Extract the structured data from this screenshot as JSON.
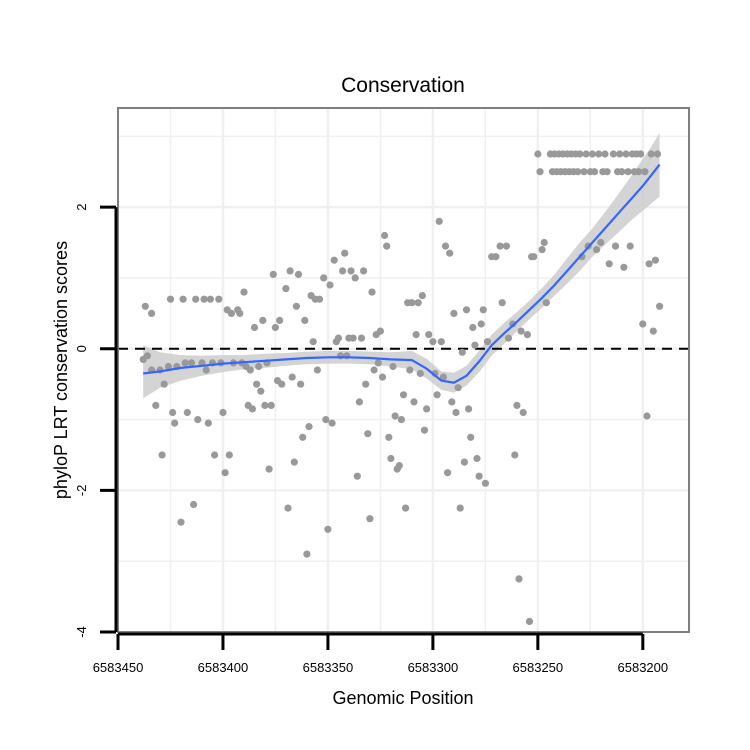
{
  "chart_data": {
    "type": "scatter",
    "title": "Conservation",
    "xlabel": "Genomic Position",
    "ylabel": "phyloP LRT conservation scores",
    "xlim": [
      6583450,
      6583178
    ],
    "x_reversed": true,
    "ylim": [
      -4.0,
      3.4
    ],
    "x_ticks": [
      6583450,
      6583400,
      6583350,
      6583300,
      6583250,
      6583200
    ],
    "x_tick_labels": [
      "6583450",
      "6583400",
      "6583350",
      "6583300",
      "6583250",
      "6583200"
    ],
    "y_ticks": [
      -4,
      -2,
      0,
      2
    ],
    "y_tick_labels": [
      "-4",
      "-2",
      "0",
      "2"
    ],
    "grid": true,
    "reference_line": {
      "y": 0,
      "style": "dashed",
      "color": "#000000"
    },
    "colors": {
      "points": "#999999",
      "smooth": "#3366ff",
      "band": "#cccccc",
      "panel_border": "#7f7f7f",
      "grid": "#f0f0f0"
    },
    "points": [
      [
        6583438,
        -0.15
      ],
      [
        6583437,
        0.6
      ],
      [
        6583436,
        -0.1
      ],
      [
        6583434,
        0.5
      ],
      [
        6583434,
        -0.3
      ],
      [
        6583432,
        -0.8
      ],
      [
        6583430,
        -0.3
      ],
      [
        6583429,
        -1.5
      ],
      [
        6583428,
        -0.5
      ],
      [
        6583426,
        -0.25
      ],
      [
        6583425,
        0.7
      ],
      [
        6583424,
        -0.9
      ],
      [
        6583423,
        -1.05
      ],
      [
        6583422,
        -0.25
      ],
      [
        6583420,
        -2.45
      ],
      [
        6583419,
        0.7
      ],
      [
        6583418,
        -0.2
      ],
      [
        6583417,
        -0.9
      ],
      [
        6583415,
        -0.2
      ],
      [
        6583414,
        -2.2
      ],
      [
        6583413,
        0.7
      ],
      [
        6583412,
        -1.0
      ],
      [
        6583410,
        -0.2
      ],
      [
        6583409,
        0.7
      ],
      [
        6583408,
        -0.3
      ],
      [
        6583407,
        -1.05
      ],
      [
        6583406,
        0.7
      ],
      [
        6583405,
        -0.2
      ],
      [
        6583404,
        -1.5
      ],
      [
        6583402,
        0.7
      ],
      [
        6583401,
        -0.2
      ],
      [
        6583400,
        -0.9
      ],
      [
        6583399,
        -1.75
      ],
      [
        6583398,
        0.55
      ],
      [
        6583397,
        -1.5
      ],
      [
        6583396,
        0.5
      ],
      [
        6583395,
        -0.2
      ],
      [
        6583393,
        0.55
      ],
      [
        6583392,
        0.5
      ],
      [
        6583391,
        -0.2
      ],
      [
        6583390,
        0.8
      ],
      [
        6583389,
        -0.25
      ],
      [
        6583388,
        -0.8
      ],
      [
        6583387,
        -0.3
      ],
      [
        6583386,
        -0.85
      ],
      [
        6583385,
        0.3
      ],
      [
        6583384,
        -0.5
      ],
      [
        6583383,
        -0.25
      ],
      [
        6583382,
        -0.6
      ],
      [
        6583381,
        0.4
      ],
      [
        6583380,
        -0.8
      ],
      [
        6583379,
        -0.2
      ],
      [
        6583378,
        -1.7
      ],
      [
        6583377,
        -0.8
      ],
      [
        6583376,
        1.05
      ],
      [
        6583375,
        0.3
      ],
      [
        6583374,
        -0.45
      ],
      [
        6583373,
        0.4
      ],
      [
        6583372,
        -0.5
      ],
      [
        6583370,
        0.85
      ],
      [
        6583369,
        -2.25
      ],
      [
        6583368,
        1.1
      ],
      [
        6583367,
        -0.4
      ],
      [
        6583366,
        -1.6
      ],
      [
        6583365,
        0.6
      ],
      [
        6583364,
        1.05
      ],
      [
        6583363,
        -0.5
      ],
      [
        6583362,
        -1.25
      ],
      [
        6583361,
        0.4
      ],
      [
        6583360,
        -2.9
      ],
      [
        6583359,
        -1.1
      ],
      [
        6583358,
        0.75
      ],
      [
        6583357,
        0.1
      ],
      [
        6583356,
        0.7
      ],
      [
        6583355,
        -0.3
      ],
      [
        6583354,
        0.7
      ],
      [
        6583352,
        1.0
      ],
      [
        6583351,
        -1.0
      ],
      [
        6583350,
        -2.55
      ],
      [
        6583349,
        0.9
      ],
      [
        6583348,
        -1.05
      ],
      [
        6583347,
        1.25
      ],
      [
        6583346,
        0.1
      ],
      [
        6583345,
        0.15
      ],
      [
        6583344,
        -0.1
      ],
      [
        6583343,
        1.1
      ],
      [
        6583342,
        1.35
      ],
      [
        6583341,
        -0.1
      ],
      [
        6583340,
        0.15
      ],
      [
        6583339,
        1.1
      ],
      [
        6583338,
        0.15
      ],
      [
        6583337,
        1.0
      ],
      [
        6583336,
        -1.8
      ],
      [
        6583335,
        -0.75
      ],
      [
        6583334,
        0.15
      ],
      [
        6583333,
        1.1
      ],
      [
        6583332,
        -0.5
      ],
      [
        6583331,
        -1.2
      ],
      [
        6583330,
        -2.4
      ],
      [
        6583329,
        0.8
      ],
      [
        6583328,
        -0.3
      ],
      [
        6583327,
        0.2
      ],
      [
        6583326,
        -0.2
      ],
      [
        6583325,
        0.25
      ],
      [
        6583324,
        -0.4
      ],
      [
        6583323,
        1.6
      ],
      [
        6583322,
        1.45
      ],
      [
        6583321,
        -1.25
      ],
      [
        6583320,
        -1.55
      ],
      [
        6583319,
        -0.25
      ],
      [
        6583318,
        -0.95
      ],
      [
        6583317,
        -1.7
      ],
      [
        6583316,
        -1.65
      ],
      [
        6583315,
        -1.0
      ],
      [
        6583314,
        -0.65
      ],
      [
        6583313,
        -2.25
      ],
      [
        6583312,
        0.65
      ],
      [
        6583311,
        -0.3
      ],
      [
        6583310,
        0.65
      ],
      [
        6583309,
        -0.75
      ],
      [
        6583308,
        0.2
      ],
      [
        6583307,
        0.65
      ],
      [
        6583306,
        -0.35
      ],
      [
        6583305,
        0.75
      ],
      [
        6583304,
        -1.15
      ],
      [
        6583303,
        -0.85
      ],
      [
        6583302,
        0.2
      ],
      [
        6583300,
        0.1
      ],
      [
        6583299,
        -0.35
      ],
      [
        6583298,
        -0.65
      ],
      [
        6583297,
        1.8
      ],
      [
        6583296,
        0.1
      ],
      [
        6583295,
        -0.4
      ],
      [
        6583294,
        1.45
      ],
      [
        6583293,
        -1.75
      ],
      [
        6583292,
        1.35
      ],
      [
        6583291,
        -0.75
      ],
      [
        6583290,
        0.5
      ],
      [
        6583289,
        -0.9
      ],
      [
        6583288,
        -0.55
      ],
      [
        6583287,
        -2.25
      ],
      [
        6583286,
        -0.05
      ],
      [
        6583285,
        -1.6
      ],
      [
        6583284,
        0.55
      ],
      [
        6583283,
        -0.85
      ],
      [
        6583282,
        -1.25
      ],
      [
        6583281,
        0.3
      ],
      [
        6583280,
        0.05
      ],
      [
        6583279,
        -1.55
      ],
      [
        6583278,
        -1.8
      ],
      [
        6583277,
        0.35
      ],
      [
        6583276,
        0.55
      ],
      [
        6583275,
        -1.9
      ],
      [
        6583274,
        0.1
      ],
      [
        6583272,
        1.3
      ],
      [
        6583270,
        1.3
      ],
      [
        6583268,
        1.45
      ],
      [
        6583267,
        0.65
      ],
      [
        6583265,
        1.45
      ],
      [
        6583264,
        0.15
      ],
      [
        6583262,
        0.35
      ],
      [
        6583261,
        -1.5
      ],
      [
        6583260,
        -0.8
      ],
      [
        6583259,
        -3.25
      ],
      [
        6583258,
        0.25
      ],
      [
        6583257,
        -0.9
      ],
      [
        6583255,
        0.2
      ],
      [
        6583254,
        -3.85
      ],
      [
        6583253,
        1.3
      ],
      [
        6583252,
        1.3
      ],
      [
        6583250,
        2.75
      ],
      [
        6583249,
        2.5
      ],
      [
        6583248,
        1.4
      ],
      [
        6583247,
        1.5
      ],
      [
        6583246,
        0.65
      ],
      [
        6583244,
        2.75
      ],
      [
        6583243,
        2.5
      ],
      [
        6583242,
        2.75
      ],
      [
        6583241,
        2.5
      ],
      [
        6583240,
        2.75
      ],
      [
        6583239,
        2.5
      ],
      [
        6583238,
        2.75
      ],
      [
        6583237,
        2.5
      ],
      [
        6583236,
        2.75
      ],
      [
        6583235,
        2.5
      ],
      [
        6583234,
        2.75
      ],
      [
        6583233,
        2.5
      ],
      [
        6583232,
        2.75
      ],
      [
        6583231,
        2.5
      ],
      [
        6583230,
        2.75
      ],
      [
        6583229,
        1.3
      ],
      [
        6583228,
        2.5
      ],
      [
        6583227,
        2.75
      ],
      [
        6583226,
        1.45
      ],
      [
        6583225,
        2.5
      ],
      [
        6583224,
        2.75
      ],
      [
        6583223,
        2.5
      ],
      [
        6583222,
        1.4
      ],
      [
        6583221,
        2.75
      ],
      [
        6583220,
        1.5
      ],
      [
        6583219,
        2.5
      ],
      [
        6583218,
        2.75
      ],
      [
        6583217,
        2.5
      ],
      [
        6583216,
        1.2
      ],
      [
        6583214,
        2.75
      ],
      [
        6583213,
        1.45
      ],
      [
        6583212,
        2.5
      ],
      [
        6583211,
        2.75
      ],
      [
        6583210,
        2.5
      ],
      [
        6583209,
        1.15
      ],
      [
        6583208,
        2.75
      ],
      [
        6583207,
        2.5
      ],
      [
        6583206,
        1.45
      ],
      [
        6583205,
        2.75
      ],
      [
        6583204,
        2.5
      ],
      [
        6583203,
        2.75
      ],
      [
        6583202,
        2.5
      ],
      [
        6583201,
        2.75
      ],
      [
        6583200,
        0.35
      ],
      [
        6583199,
        2.5
      ],
      [
        6583198,
        -0.95
      ],
      [
        6583197,
        1.2
      ],
      [
        6583196,
        2.75
      ],
      [
        6583195,
        0.25
      ],
      [
        6583194,
        1.25
      ],
      [
        6583193,
        2.75
      ],
      [
        6583192,
        0.6
      ]
    ],
    "smooth": {
      "x": [
        6583438,
        6583430,
        6583420,
        6583410,
        6583400,
        6583390,
        6583380,
        6583370,
        6583360,
        6583350,
        6583340,
        6583330,
        6583320,
        6583310,
        6583303,
        6583296,
        6583290,
        6583284,
        6583278,
        6583272,
        6583266,
        6583260,
        6583254,
        6583248,
        6583242,
        6583236,
        6583230,
        6583224,
        6583218,
        6583212,
        6583206,
        6583200,
        6583196,
        6583192
      ],
      "y": [
        -0.35,
        -0.32,
        -0.27,
        -0.24,
        -0.21,
        -0.19,
        -0.17,
        -0.15,
        -0.13,
        -0.12,
        -0.12,
        -0.13,
        -0.15,
        -0.16,
        -0.28,
        -0.45,
        -0.48,
        -0.38,
        -0.18,
        0.05,
        0.22,
        0.38,
        0.55,
        0.72,
        0.9,
        1.1,
        1.3,
        1.5,
        1.7,
        1.9,
        2.1,
        2.3,
        2.45,
        2.6
      ],
      "lower": [
        -0.7,
        -0.55,
        -0.45,
        -0.38,
        -0.33,
        -0.29,
        -0.27,
        -0.24,
        -0.22,
        -0.21,
        -0.21,
        -0.22,
        -0.25,
        -0.29,
        -0.42,
        -0.58,
        -0.62,
        -0.52,
        -0.33,
        -0.1,
        0.07,
        0.25,
        0.42,
        0.58,
        0.75,
        0.92,
        1.1,
        1.3,
        1.47,
        1.63,
        1.8,
        1.95,
        2.05,
        2.15
      ],
      "upper": [
        0.05,
        -0.05,
        -0.09,
        -0.1,
        -0.09,
        -0.09,
        -0.07,
        -0.06,
        -0.04,
        -0.03,
        -0.03,
        -0.04,
        -0.05,
        -0.03,
        -0.14,
        -0.32,
        -0.34,
        -0.24,
        -0.03,
        0.2,
        0.37,
        0.52,
        0.68,
        0.86,
        1.05,
        1.28,
        1.5,
        1.7,
        1.93,
        2.17,
        2.42,
        2.68,
        2.85,
        3.05
      ]
    }
  }
}
